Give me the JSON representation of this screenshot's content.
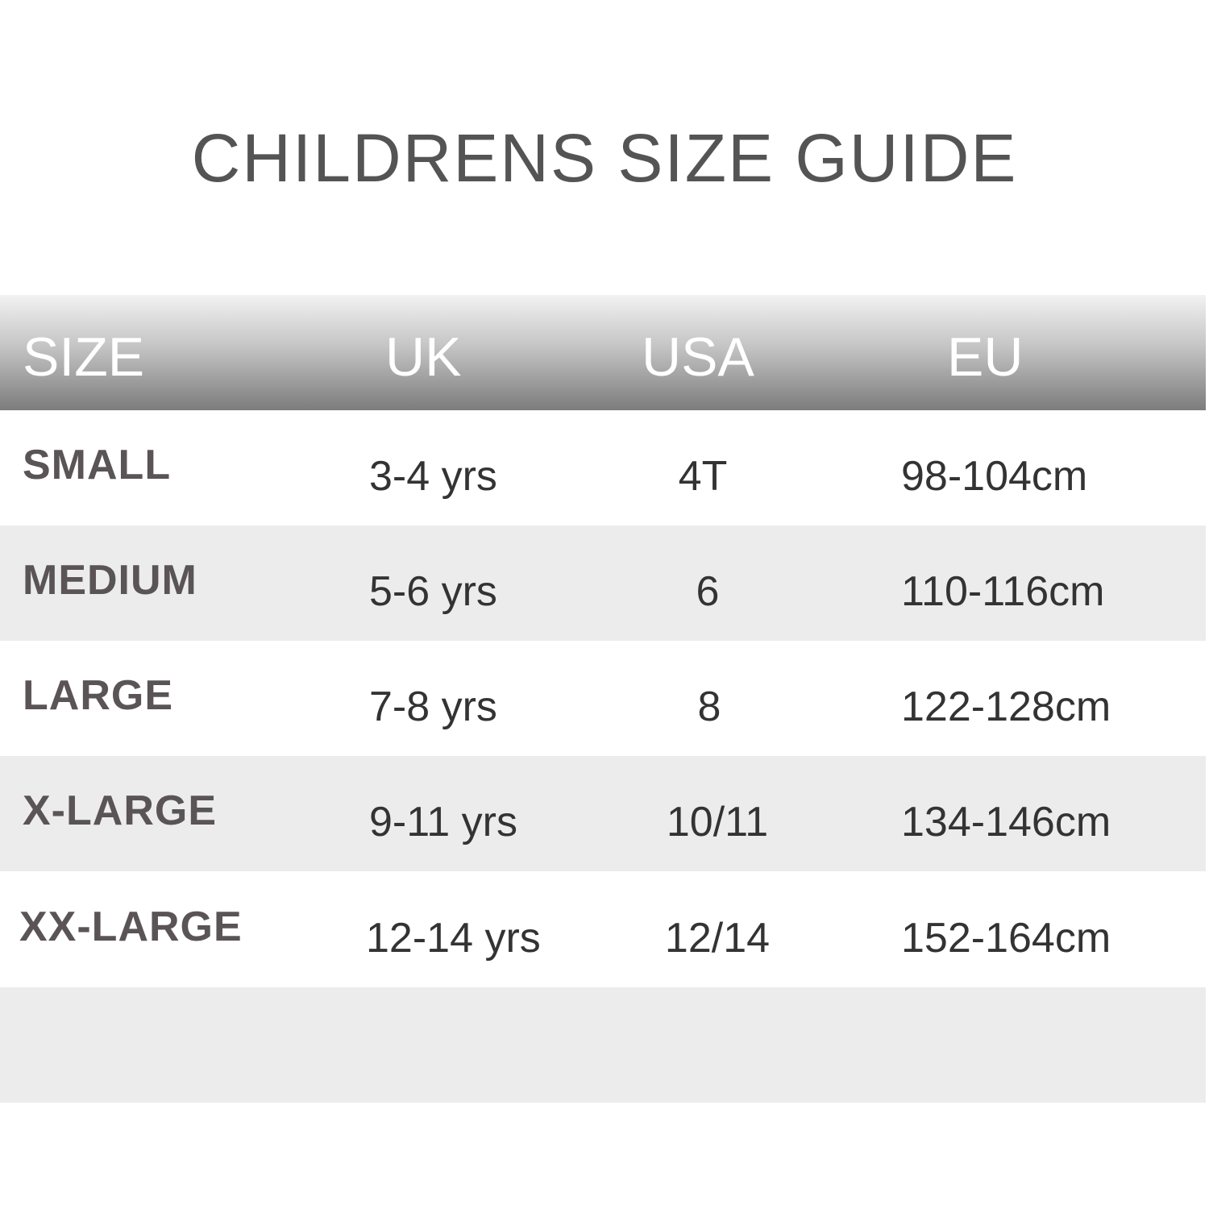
{
  "title": "CHILDRENS SIZE GUIDE",
  "columns": [
    "SIZE",
    "UK",
    "USA",
    "EU"
  ],
  "rows": [
    {
      "size": "SMALL",
      "uk": "3-4 yrs",
      "usa": "4T",
      "eu": "98-104cm"
    },
    {
      "size": "MEDIUM",
      "uk": "5-6 yrs",
      "usa": "6",
      "eu": "110-116cm"
    },
    {
      "size": "LARGE",
      "uk": "7-8 yrs",
      "usa": "8",
      "eu": "122-128cm"
    },
    {
      "size": "X-LARGE",
      "uk": "9-11 yrs",
      "usa": "10/11",
      "eu": "134-146cm"
    },
    {
      "size": "XX-LARGE",
      "uk": "12-14 yrs",
      "usa": "12/14",
      "eu": "152-164cm"
    }
  ],
  "colors": {
    "title": "#555455",
    "label": "#5a5456",
    "alt_row": "#ececec",
    "header_dark": "#7c7c7c"
  }
}
